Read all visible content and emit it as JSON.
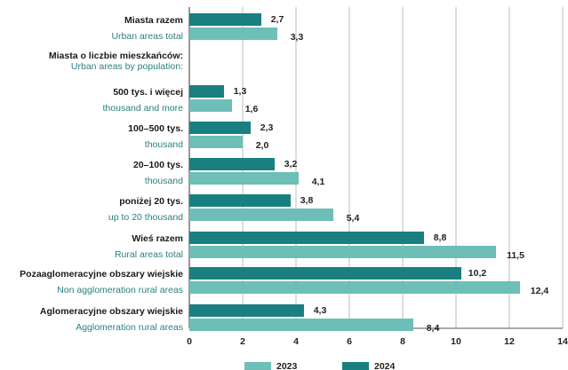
{
  "chart_data": {
    "type": "bar",
    "orientation": "horizontal",
    "xlim": [
      0,
      14
    ],
    "xticks": [
      "0",
      "2",
      "4",
      "6",
      "8",
      "10",
      "12",
      "14"
    ],
    "grid": true,
    "legend_position": "bottom",
    "colors": {
      "2023": "#6dbfb8",
      "2024": "#1a7f80"
    },
    "series": [
      {
        "name": "2023",
        "color": "#6dbfb8",
        "values": [
          3.3,
          null,
          1.6,
          2.0,
          4.1,
          5.4,
          11.5,
          12.4,
          8.4
        ],
        "value_labels": [
          "3,3",
          "",
          "1,6",
          "2,0",
          "4,1",
          "5,4",
          "11,5",
          "12,4",
          "8,4"
        ]
      },
      {
        "name": "2024",
        "color": "#1a7f80",
        "values": [
          2.7,
          null,
          1.3,
          2.3,
          3.2,
          3.8,
          8.8,
          10.2,
          4.3
        ],
        "value_labels": [
          "2,7",
          "",
          "1,3",
          "2,3",
          "3,2",
          "3,8",
          "8,8",
          "10,2",
          "4,3"
        ]
      }
    ],
    "categories": [
      {
        "pl": "Miasta razem",
        "en": "Urban areas total"
      },
      {
        "pl": "Miasta o liczbie mieszkańców:",
        "en": "Urban areas by population:"
      },
      {
        "pl": "500 tys. i więcej",
        "en": "thousand and more"
      },
      {
        "pl": "100–500 tys.",
        "en": "thousand"
      },
      {
        "pl": "20–100 tys.",
        "en": "thousand"
      },
      {
        "pl": "poniżej 20 tys.",
        "en": "up to 20 thousand"
      },
      {
        "pl": "Wieś razem",
        "en": "Rural areas total"
      },
      {
        "pl": "Pozaaglomeracyjne obszary wiejskie",
        "en": "Non agglomeration rural areas"
      },
      {
        "pl": "Aglomeracyjne obszary wiejskie",
        "en": "Agglomeration rural areas"
      }
    ],
    "legend": [
      "2023",
      "2024"
    ]
  }
}
